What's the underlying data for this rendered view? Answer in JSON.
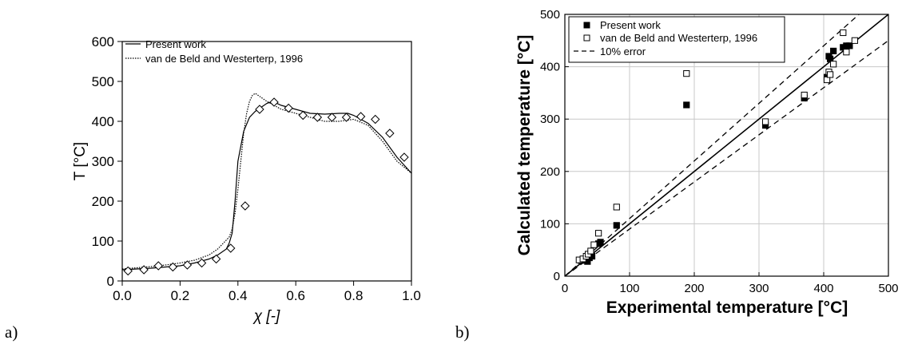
{
  "panel_labels": [
    "a)",
    "b)"
  ],
  "chart_data": [
    {
      "type": "line",
      "xlabel": "χ [-]",
      "ylabel": "T [°C]",
      "xlim": [
        0.0,
        1.0
      ],
      "ylim": [
        0,
        600
      ],
      "xticks": [
        "0.0",
        "0.2",
        "0.4",
        "0.6",
        "0.8",
        "1.0"
      ],
      "yticks": [
        "0",
        "100",
        "200",
        "300",
        "400",
        "500",
        "600"
      ],
      "grid": false,
      "legend": "top-left",
      "series": [
        {
          "name": "Present work",
          "style": "solid",
          "x": [
            0.0,
            0.05,
            0.1,
            0.15,
            0.2,
            0.25,
            0.3,
            0.33,
            0.36,
            0.37,
            0.38,
            0.39,
            0.4,
            0.42,
            0.44,
            0.46,
            0.48,
            0.5,
            0.52,
            0.55,
            0.6,
            0.65,
            0.7,
            0.75,
            0.78,
            0.8,
            0.85,
            0.9,
            0.95,
            1.0
          ],
          "y": [
            28,
            30,
            32,
            35,
            38,
            45,
            55,
            65,
            80,
            95,
            120,
            200,
            300,
            375,
            410,
            425,
            435,
            445,
            450,
            440,
            430,
            420,
            418,
            420,
            420,
            415,
            395,
            360,
            310,
            270
          ]
        },
        {
          "name": "van de Beld and Westerterp, 1996",
          "style": "dotted",
          "x": [
            0.0,
            0.05,
            0.1,
            0.15,
            0.2,
            0.25,
            0.3,
            0.33,
            0.35,
            0.37,
            0.38,
            0.39,
            0.4,
            0.41,
            0.42,
            0.43,
            0.44,
            0.45,
            0.46,
            0.48,
            0.5,
            0.55,
            0.6,
            0.65,
            0.7,
            0.75,
            0.8,
            0.85,
            0.9,
            0.95,
            1.0
          ],
          "y": [
            30,
            33,
            36,
            40,
            45,
            52,
            65,
            80,
            95,
            110,
            130,
            170,
            230,
            300,
            370,
            420,
            450,
            465,
            470,
            460,
            450,
            430,
            420,
            410,
            400,
            400,
            405,
            390,
            350,
            300,
            270
          ]
        },
        {
          "name": "",
          "style": "diamond-markers",
          "x": [
            0.02,
            0.075,
            0.125,
            0.175,
            0.225,
            0.275,
            0.325,
            0.375,
            0.425,
            0.475,
            0.525,
            0.575,
            0.625,
            0.675,
            0.725,
            0.775,
            0.825,
            0.875,
            0.925,
            0.975
          ],
          "y": [
            25,
            28,
            38,
            35,
            40,
            45,
            55,
            82,
            188,
            430,
            448,
            433,
            415,
            410,
            410,
            410,
            412,
            405,
            370,
            310
          ]
        }
      ]
    },
    {
      "type": "scatter",
      "xlabel": "Experimental temperature [°C]",
      "ylabel": "Calculated temperature [°C]",
      "xlim": [
        0,
        500
      ],
      "ylim": [
        0,
        500
      ],
      "xticks": [
        "0",
        "100",
        "200",
        "300",
        "400",
        "500"
      ],
      "yticks": [
        "0",
        "100",
        "200",
        "300",
        "400",
        "500"
      ],
      "grid": true,
      "legend": "top-left",
      "series": [
        {
          "name": "Present work",
          "marker": "filled-square",
          "x": [
            25,
            30,
            35,
            38,
            42,
            52,
            55,
            80,
            188,
            310,
            370,
            405,
            408,
            410,
            415,
            430,
            435,
            440
          ],
          "y": [
            30,
            32,
            28,
            35,
            38,
            62,
            65,
            97,
            327,
            288,
            340,
            380,
            420,
            415,
            430,
            437,
            440,
            440
          ]
        },
        {
          "name": "van de Beld and Westerterp, 1996",
          "marker": "open-square",
          "x": [
            22,
            28,
            33,
            36,
            40,
            45,
            52,
            80,
            188,
            310,
            370,
            405,
            408,
            410,
            415,
            430,
            435,
            448
          ],
          "y": [
            31,
            33,
            38,
            42,
            48,
            60,
            82,
            132,
            387,
            295,
            346,
            375,
            390,
            385,
            405,
            465,
            428,
            450
          ]
        },
        {
          "name": "10% error",
          "style": "dashed",
          "lines": [
            [
              [
                0,
                0
              ],
              [
                454.5,
                500
              ]
            ],
            [
              [
                0,
                0
              ],
              [
                500,
                450
              ]
            ]
          ]
        },
        {
          "name": "",
          "style": "solid",
          "lines": [
            [
              [
                0,
                0
              ],
              [
                500,
                500
              ]
            ]
          ]
        }
      ]
    }
  ]
}
